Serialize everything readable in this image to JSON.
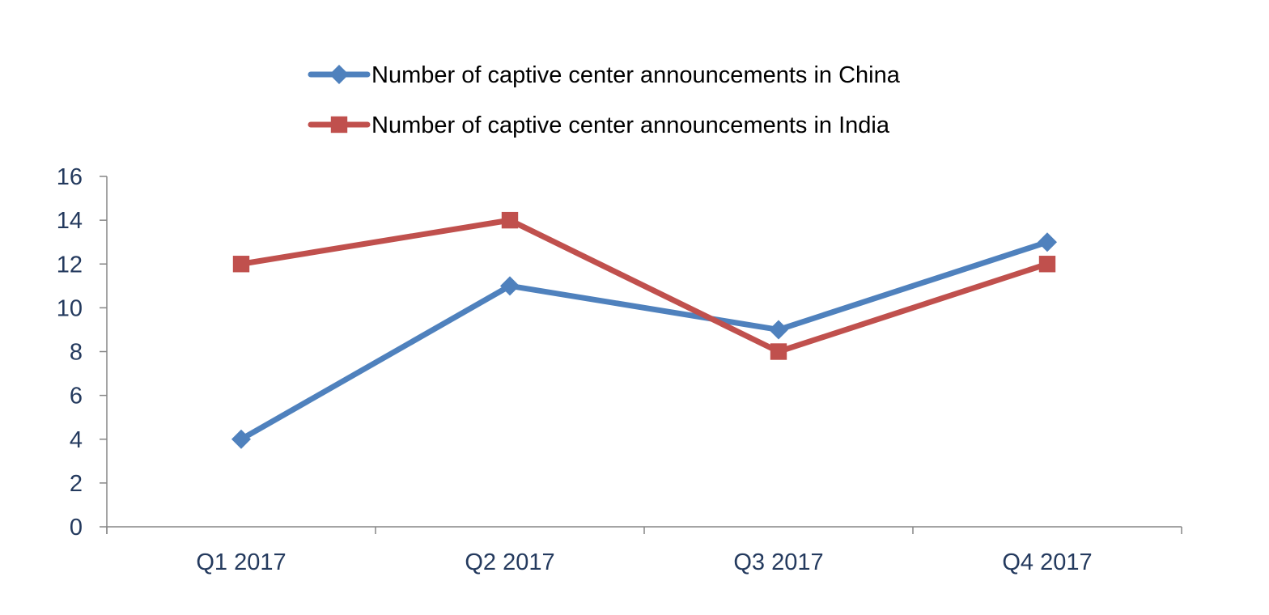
{
  "chart_data": {
    "type": "line",
    "title": "",
    "xlabel": "",
    "ylabel": "",
    "categories": [
      "Q1 2017",
      "Q2 2017",
      "Q3 2017",
      "Q4 2017"
    ],
    "ylim": [
      0,
      16
    ],
    "yticks": [
      0,
      2,
      4,
      6,
      8,
      10,
      12,
      14,
      16
    ],
    "grid": false,
    "legend_position": "top",
    "series": [
      {
        "name": "Number of captive center announcements in China",
        "values": [
          4,
          11,
          9,
          13
        ],
        "color": "#4f81bd",
        "marker": "diamond"
      },
      {
        "name": "Number of captive center announcements in India",
        "values": [
          12,
          14,
          8,
          12
        ],
        "color": "#c0504d",
        "marker": "square"
      }
    ]
  }
}
